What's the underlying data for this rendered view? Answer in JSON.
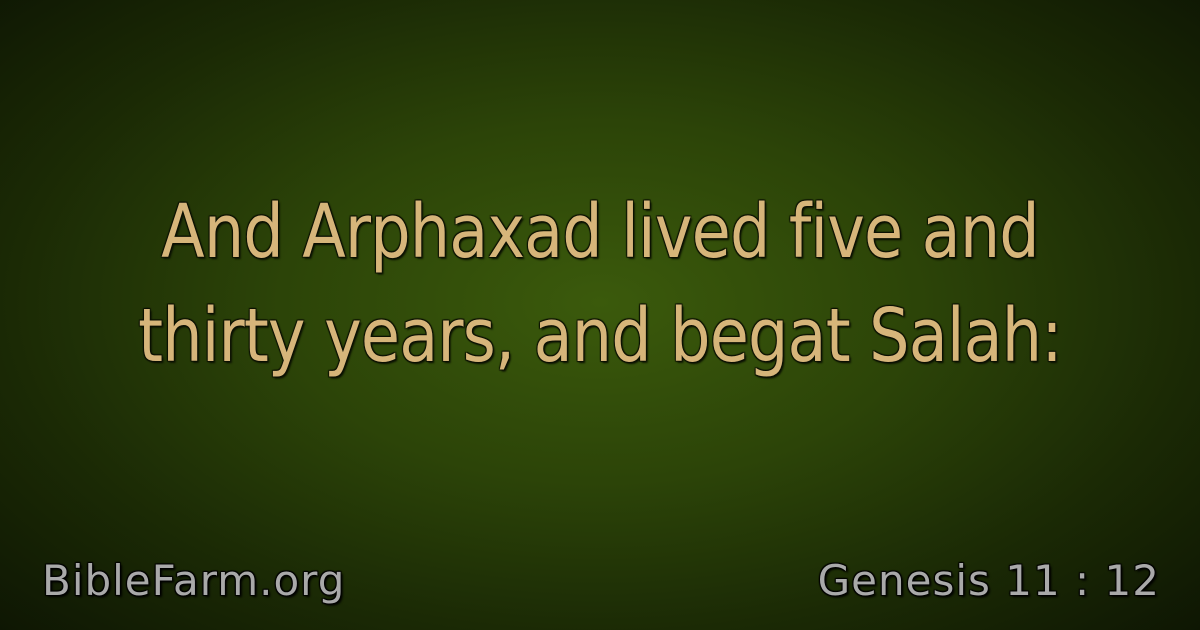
{
  "verse": {
    "line1": "And Arphaxad lived five and",
    "line2": "thirty years, and begat Salah:"
  },
  "site": "BibleFarm.org",
  "reference": "Genesis 11 : 12",
  "colors": {
    "verse_text": "#d6b57a",
    "footer_text": "#a9a9a9",
    "background_center": "#3b5a0c",
    "background_edge": "#0e1603"
  }
}
